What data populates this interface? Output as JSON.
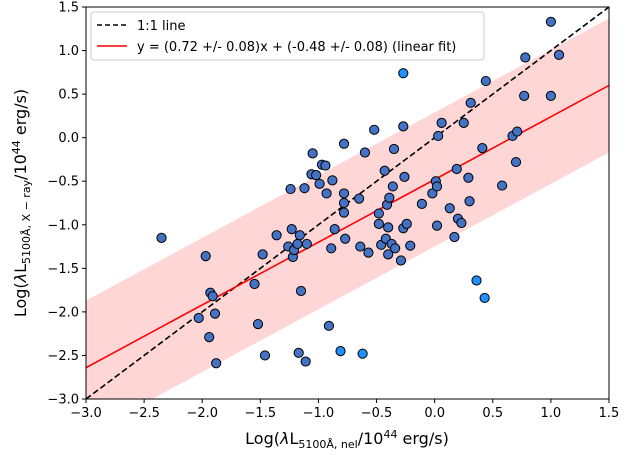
{
  "chart_data": {
    "type": "scatter",
    "xlabel": "Log(λL5100Å, nel/10^44 erg/s)",
    "xlabel_parts": {
      "pre": "Log(",
      "lambda": "λ",
      "L": "L",
      "sub": "5100Å, nel",
      "mid": "/10",
      "sup": "44",
      "post": " erg/s)"
    },
    "ylabel": "Log(λL5100Å, X − ray/10^44 erg/s)",
    "ylabel_parts": {
      "pre": "Log(",
      "lambda": "λ",
      "L": "L",
      "sub": "5100Å, X − ray",
      "mid": "/10",
      "sup": "44",
      "post": " erg/s)"
    },
    "xlim": [
      -3.0,
      1.5
    ],
    "ylim": [
      -3.0,
      1.5
    ],
    "xticks": [
      "−3.0",
      "−2.5",
      "−2.0",
      "−1.5",
      "−1.0",
      "−0.5",
      "0.0",
      "0.5",
      "1.0",
      "1.5"
    ],
    "yticks": [
      "−3.0",
      "−2.5",
      "−2.0",
      "−1.5",
      "−1.0",
      "−0.5",
      "0.0",
      "0.5",
      "1.0",
      "1.5"
    ],
    "xtick_values": [
      -3.0,
      -2.5,
      -2.0,
      -1.5,
      -1.0,
      -0.5,
      0.0,
      0.5,
      1.0,
      1.5
    ],
    "ytick_values": [
      -3.0,
      -2.5,
      -2.0,
      -1.5,
      -1.0,
      -0.5,
      0.0,
      0.5,
      1.0,
      1.5
    ],
    "grid": false,
    "legend_position": "upper-left",
    "lines": [
      {
        "name": "1:1 line",
        "slope": 1.0,
        "intercept": 0.0,
        "style": "dashed",
        "color": "#000000"
      },
      {
        "name": "y = (0.72 +/- 0.08)x + (-0.48 +/- 0.08) (linear fit)",
        "slope": 0.72,
        "intercept": -0.48,
        "style": "solid",
        "color": "#ff0000"
      }
    ],
    "band": {
      "slope": 0.72,
      "intercept": -0.48,
      "halfwidth": 0.77,
      "color": "#ffd6d6"
    },
    "series": [
      {
        "color": "#4472c4",
        "points": [
          [
            -2.35,
            -1.15
          ],
          [
            -2.03,
            -2.07
          ],
          [
            -1.97,
            -1.36
          ],
          [
            -1.94,
            -2.29
          ],
          [
            -1.93,
            -1.78
          ],
          [
            -1.91,
            -1.82
          ],
          [
            -1.89,
            -2.02
          ],
          [
            -1.88,
            -2.59
          ],
          [
            -1.55,
            -1.68
          ],
          [
            -1.52,
            -2.14
          ],
          [
            -1.48,
            -1.34
          ],
          [
            -1.46,
            -2.5
          ],
          [
            -1.36,
            -1.12
          ],
          [
            -1.26,
            -1.25
          ],
          [
            -1.24,
            -0.59
          ],
          [
            -1.23,
            -1.05
          ],
          [
            -1.22,
            -1.37
          ],
          [
            -1.21,
            -1.29
          ],
          [
            -1.18,
            -1.22
          ],
          [
            -1.17,
            -2.47
          ],
          [
            -1.16,
            -1.12
          ],
          [
            -1.15,
            -1.76
          ],
          [
            -1.12,
            -0.58
          ],
          [
            -1.11,
            -2.57
          ],
          [
            -1.1,
            -1.22
          ],
          [
            -1.06,
            -0.42
          ],
          [
            -1.05,
            -0.18
          ],
          [
            -1.02,
            -0.43
          ],
          [
            -0.99,
            -0.53
          ],
          [
            -0.97,
            -0.31
          ],
          [
            -0.94,
            -0.32
          ],
          [
            -0.93,
            -0.64
          ],
          [
            -0.91,
            -2.16
          ],
          [
            -0.89,
            -1.27
          ],
          [
            -0.88,
            -0.49
          ],
          [
            -0.86,
            -1.05
          ],
          [
            -0.78,
            -0.07
          ],
          [
            -0.78,
            -0.64
          ],
          [
            -0.78,
            -0.75
          ],
          [
            -0.78,
            -0.86
          ],
          [
            -0.77,
            -1.16
          ],
          [
            -0.65,
            -0.7
          ],
          [
            -0.64,
            -1.25
          ],
          [
            -0.6,
            -0.17
          ],
          [
            -0.57,
            -1.32
          ],
          [
            -0.52,
            0.09
          ],
          [
            -0.48,
            -0.87
          ],
          [
            -0.48,
            -0.99
          ],
          [
            -0.46,
            -1.23
          ],
          [
            -0.43,
            -0.38
          ],
          [
            -0.42,
            -1.16
          ],
          [
            -0.41,
            -0.77
          ],
          [
            -0.4,
            -1.03
          ],
          [
            -0.4,
            -1.34
          ],
          [
            -0.39,
            -0.69
          ],
          [
            -0.37,
            -1.22
          ],
          [
            -0.36,
            -0.56
          ],
          [
            -0.35,
            -0.13
          ],
          [
            -0.34,
            -1.27
          ],
          [
            -0.29,
            -1.41
          ],
          [
            -0.27,
            0.13
          ],
          [
            -0.27,
            -1.04
          ],
          [
            -0.26,
            -0.45
          ],
          [
            -0.24,
            -0.99
          ],
          [
            -0.21,
            -1.24
          ],
          [
            -0.11,
            -0.76
          ],
          [
            -0.02,
            -0.64
          ],
          [
            0.01,
            -0.5
          ],
          [
            0.02,
            -0.56
          ],
          [
            0.02,
            -1.01
          ],
          [
            0.03,
            0.02
          ],
          [
            0.06,
            0.17
          ],
          [
            0.13,
            -0.81
          ],
          [
            0.17,
            -1.14
          ],
          [
            0.19,
            -0.36
          ],
          [
            0.2,
            -0.93
          ],
          [
            0.23,
            -0.98
          ],
          [
            0.25,
            0.17
          ],
          [
            0.29,
            -0.46
          ],
          [
            0.3,
            -0.73
          ],
          [
            0.31,
            0.4
          ],
          [
            0.41,
            -0.12
          ],
          [
            0.44,
            0.65
          ],
          [
            0.58,
            -0.55
          ],
          [
            0.67,
            0.02
          ],
          [
            0.7,
            -0.28
          ],
          [
            0.71,
            0.07
          ],
          [
            0.77,
            0.48
          ],
          [
            0.78,
            0.92
          ],
          [
            1.0,
            1.33
          ],
          [
            1.0,
            0.48
          ],
          [
            1.07,
            0.95
          ]
        ]
      },
      {
        "color": "#1e90ff",
        "points": [
          [
            -0.27,
            0.74
          ],
          [
            -0.81,
            -2.45
          ],
          [
            -0.62,
            -2.48
          ],
          [
            0.36,
            -1.64
          ],
          [
            0.43,
            -1.84
          ]
        ]
      }
    ]
  }
}
